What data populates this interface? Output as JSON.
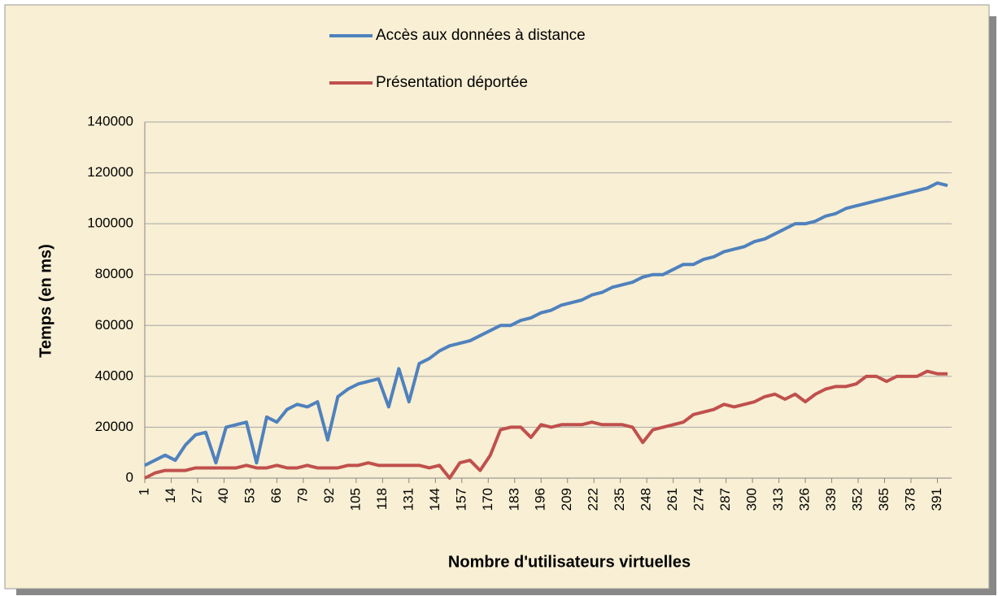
{
  "chart_data": {
    "type": "line",
    "xlabel": "Nombre d'utilisateurs virtuelles",
    "ylabel": "Temps (en ms)",
    "x": [
      1,
      6,
      11,
      16,
      21,
      26,
      31,
      36,
      41,
      46,
      51,
      56,
      61,
      66,
      71,
      76,
      81,
      86,
      91,
      96,
      101,
      106,
      111,
      116,
      121,
      126,
      131,
      136,
      141,
      146,
      151,
      156,
      161,
      166,
      171,
      176,
      181,
      186,
      191,
      196,
      201,
      206,
      211,
      216,
      221,
      226,
      231,
      236,
      241,
      246,
      251,
      256,
      261,
      266,
      271,
      276,
      281,
      286,
      291,
      296,
      301,
      306,
      311,
      316,
      321,
      326,
      331,
      336,
      341,
      346,
      351,
      356,
      361,
      366,
      371,
      376,
      381,
      386,
      391,
      396
    ],
    "series": [
      {
        "name": "Accès aux données à distance",
        "color": "#4f81bd",
        "values": [
          5000,
          7000,
          9000,
          7000,
          13000,
          17000,
          18000,
          6000,
          20000,
          21000,
          22000,
          6000,
          24000,
          22000,
          27000,
          29000,
          28000,
          30000,
          15000,
          32000,
          35000,
          37000,
          38000,
          39000,
          28000,
          43000,
          30000,
          45000,
          47000,
          50000,
          52000,
          53000,
          54000,
          56000,
          58000,
          60000,
          60000,
          62000,
          63000,
          65000,
          66000,
          68000,
          69000,
          70000,
          72000,
          73000,
          75000,
          76000,
          77000,
          79000,
          80000,
          80000,
          82000,
          84000,
          84000,
          86000,
          87000,
          89000,
          90000,
          91000,
          93000,
          94000,
          96000,
          98000,
          100000,
          100000,
          101000,
          103000,
          104000,
          106000,
          107000,
          108000,
          109000,
          110000,
          111000,
          112000,
          113000,
          114000,
          116000,
          115000
        ]
      },
      {
        "name": "Présentation déportée",
        "color": "#c0504d",
        "values": [
          0,
          2000,
          3000,
          3000,
          3000,
          4000,
          4000,
          4000,
          4000,
          4000,
          5000,
          4000,
          4000,
          5000,
          4000,
          4000,
          5000,
          4000,
          4000,
          4000,
          5000,
          5000,
          6000,
          5000,
          5000,
          5000,
          5000,
          5000,
          4000,
          5000,
          0,
          6000,
          7000,
          3000,
          9000,
          19000,
          20000,
          20000,
          16000,
          21000,
          20000,
          21000,
          21000,
          21000,
          22000,
          21000,
          21000,
          21000,
          20000,
          14000,
          19000,
          20000,
          21000,
          22000,
          25000,
          26000,
          27000,
          29000,
          28000,
          29000,
          30000,
          32000,
          33000,
          31000,
          33000,
          30000,
          33000,
          35000,
          36000,
          36000,
          37000,
          40000,
          40000,
          38000,
          40000,
          40000,
          40000,
          42000,
          41000,
          41000
        ]
      }
    ],
    "xlim": [
      1,
      398
    ],
    "xticks": [
      1,
      14,
      27,
      40,
      53,
      66,
      79,
      92,
      105,
      118,
      131,
      144,
      157,
      170,
      183,
      196,
      209,
      222,
      235,
      248,
      261,
      274,
      287,
      300,
      313,
      326,
      339,
      352,
      365,
      378,
      391
    ],
    "ylim": [
      0,
      140000
    ],
    "yticks": [
      0,
      20000,
      40000,
      60000,
      80000,
      100000,
      120000,
      140000
    ],
    "grid": true
  }
}
